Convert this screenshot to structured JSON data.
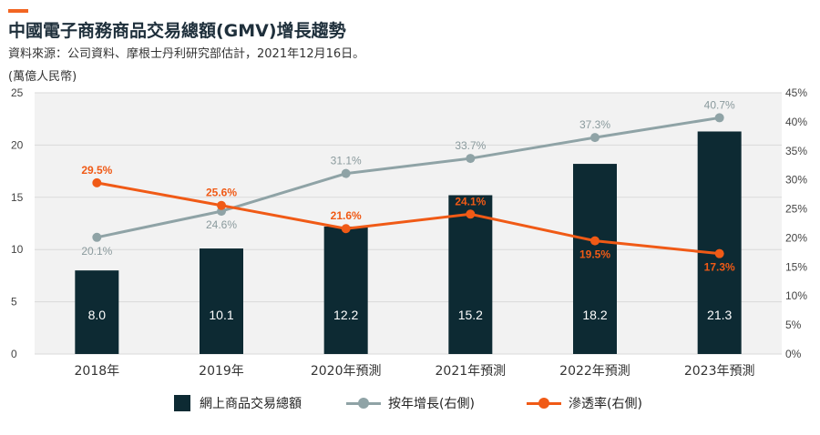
{
  "header": {
    "title": "中國電子商務商品交易總額(GMV)增長趨勢",
    "subtitle": "資料來源：公司資料、摩根士丹利研究部估計，2021年12月16日。",
    "unit_label": "(萬億人民幣)"
  },
  "colors": {
    "accent": "#f26522",
    "bar": "#0d2a33",
    "yoy_line": "#8fa3a6",
    "penetration_line": "#f05a16",
    "grid": "#d9d9d9",
    "plot_bg": "#f2f2f2"
  },
  "chart_data": {
    "type": "bar",
    "categories": [
      "2018年",
      "2019年",
      "2020年預測",
      "2021年預測",
      "2022年預測",
      "2023年預測"
    ],
    "ylim": [
      0,
      25
    ],
    "yticks": [
      "0",
      "5",
      "10",
      "15",
      "20",
      "25"
    ],
    "y2lim": [
      0,
      45
    ],
    "y2ticks": [
      "0%",
      "5%",
      "10%",
      "15%",
      "20%",
      "25%",
      "30%",
      "35%",
      "40%",
      "45%"
    ],
    "grid": true,
    "legend_position": "bottom",
    "series": [
      {
        "name": "網上商品交易總額",
        "type": "bar",
        "axis": "left",
        "values": [
          8.0,
          10.1,
          12.2,
          15.2,
          18.2,
          21.3
        ],
        "labels": [
          "8.0",
          "10.1",
          "12.2",
          "15.2",
          "18.2",
          "21.3"
        ]
      },
      {
        "name": "按年增長(右側)",
        "type": "line",
        "axis": "right",
        "values": [
          20.1,
          24.6,
          31.1,
          33.7,
          37.3,
          40.7
        ],
        "labels": [
          "20.1%",
          "24.6%",
          "31.1%",
          "33.7%",
          "37.3%",
          "40.7%"
        ]
      },
      {
        "name": "滲透率(右側)",
        "type": "line",
        "axis": "right",
        "values": [
          29.5,
          25.6,
          21.6,
          24.1,
          19.5,
          17.3
        ],
        "labels": [
          "29.5%",
          "25.6%",
          "21.6%",
          "24.1%",
          "19.5%",
          "17.3%"
        ]
      }
    ]
  }
}
